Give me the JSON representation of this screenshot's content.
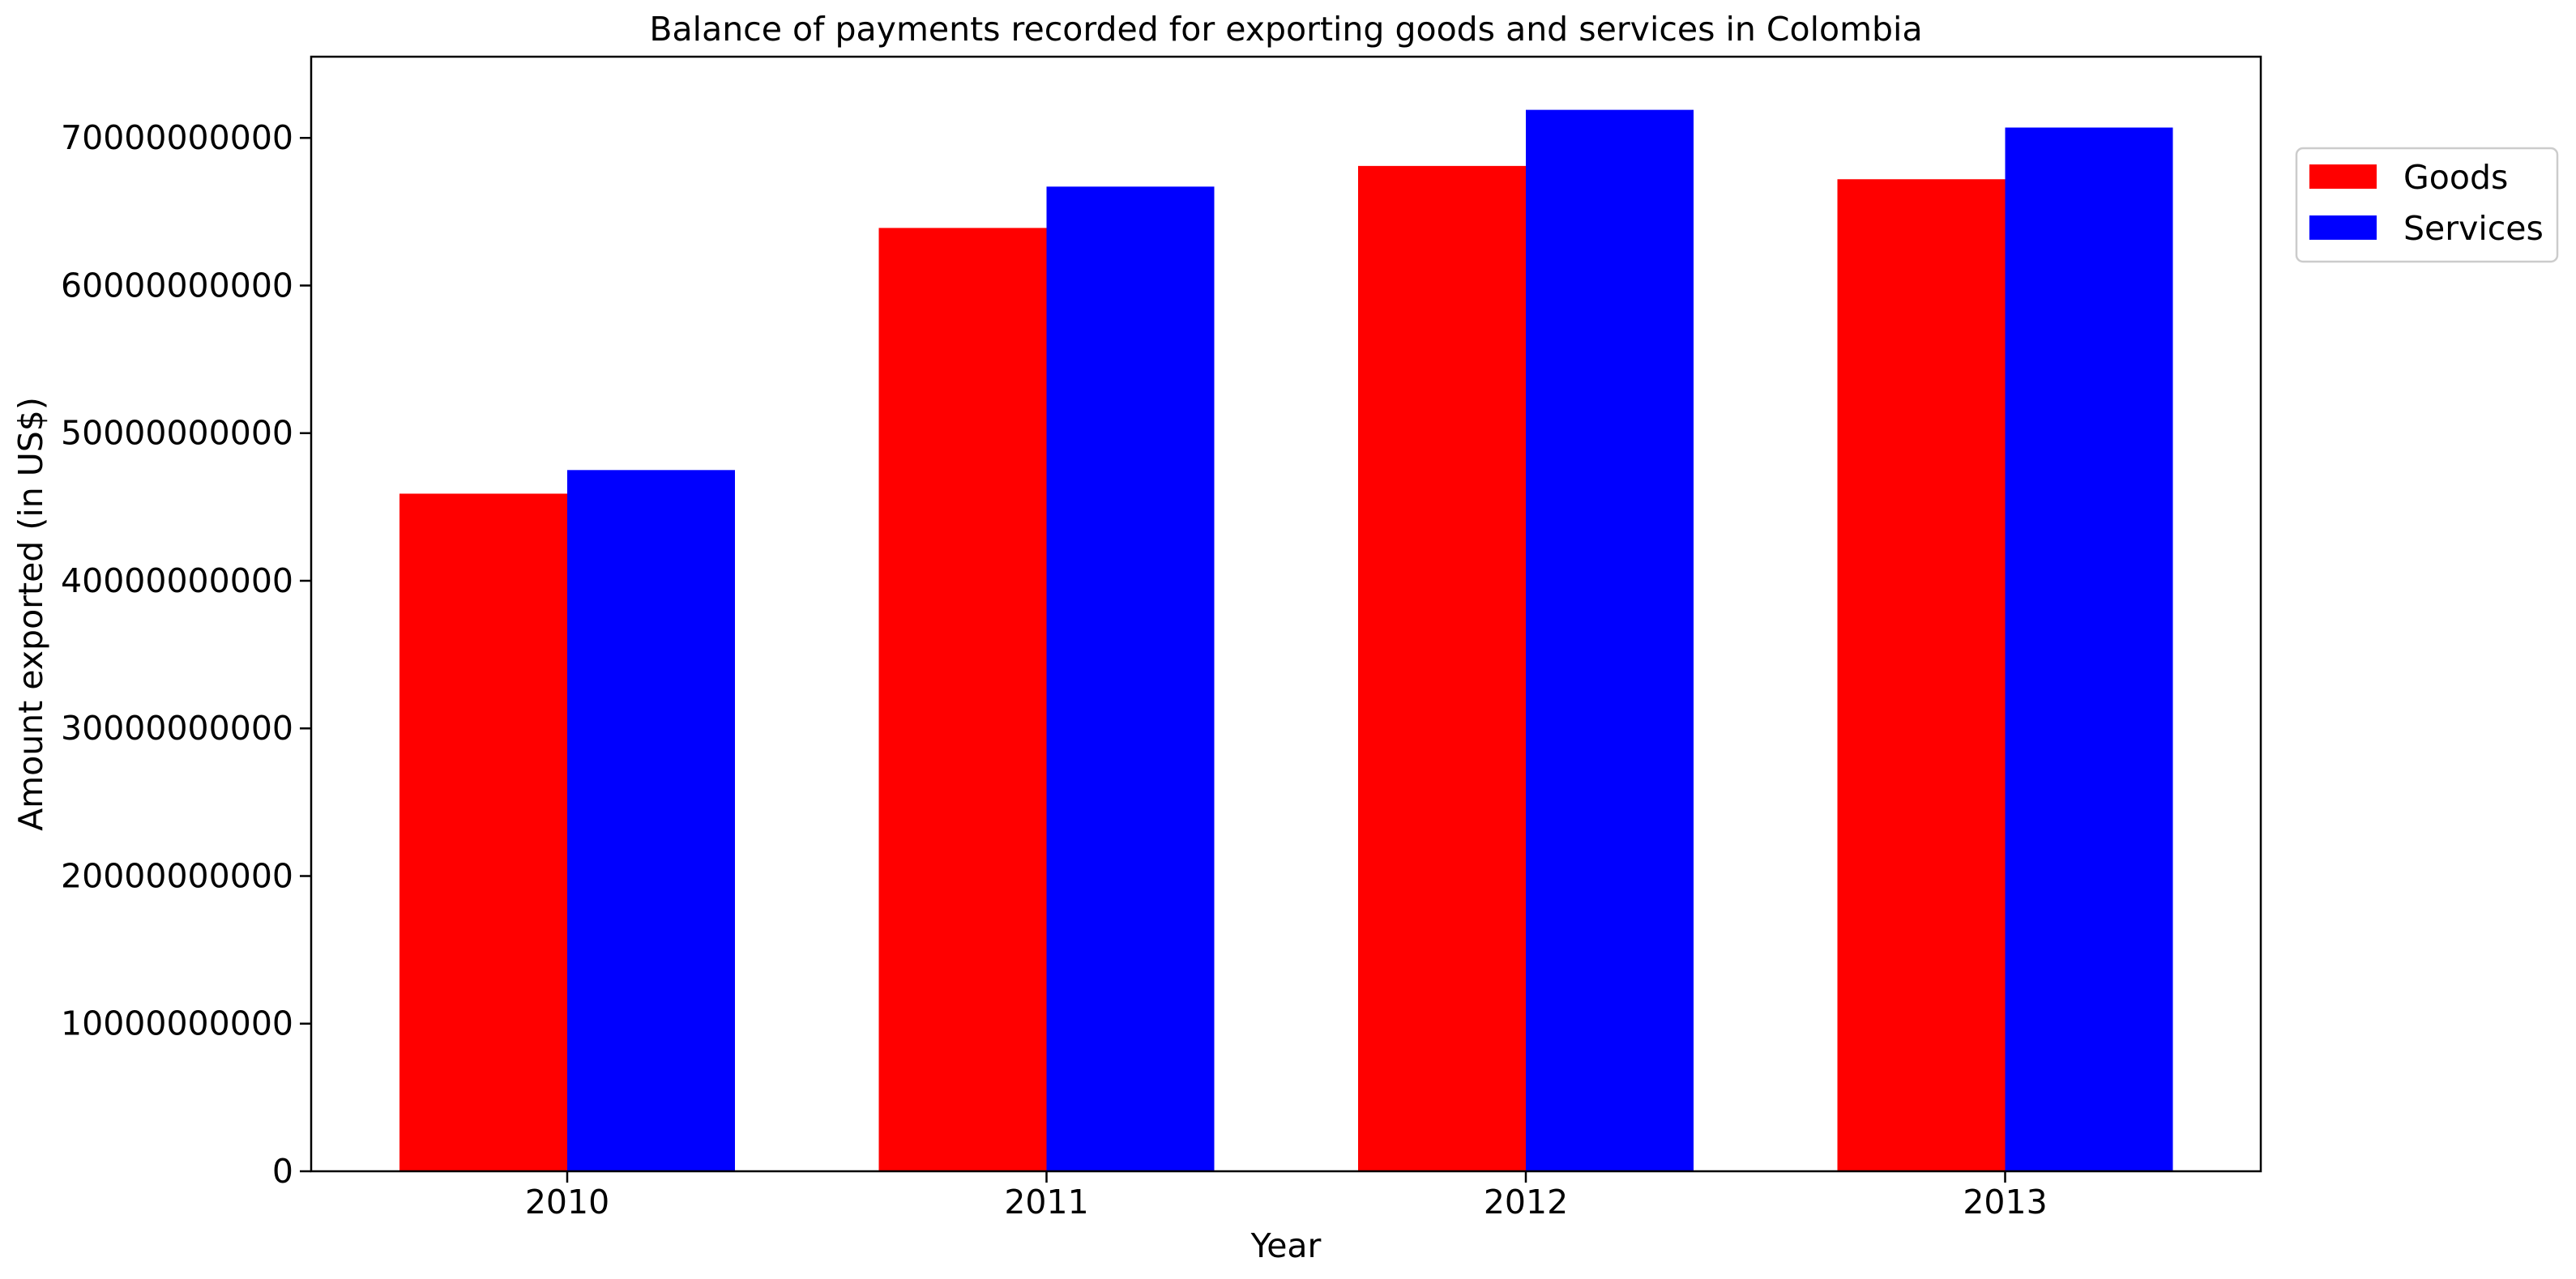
{
  "chart_data": {
    "type": "bar",
    "title": "Balance of payments recorded for exporting goods and services in Colombia",
    "xlabel": "Year",
    "ylabel": "Amount exported (in US$)",
    "categories": [
      "2010",
      "2011",
      "2012",
      "2013"
    ],
    "series": [
      {
        "name": "Goods",
        "color": "#ff0000",
        "values": [
          45900000000,
          63900000000,
          68100000000,
          67200000000
        ]
      },
      {
        "name": "Services",
        "color": "#0000ff",
        "values": [
          47500000000,
          66700000000,
          71900000000,
          70700000000
        ]
      }
    ],
    "ylim": [
      0,
      75500000000
    ],
    "yticks": [
      0,
      10000000000,
      20000000000,
      30000000000,
      40000000000,
      50000000000,
      60000000000,
      70000000000
    ],
    "ytick_labels": [
      "0",
      "10000000000",
      "20000000000",
      "30000000000",
      "40000000000",
      "50000000000",
      "60000000000",
      "70000000000"
    ],
    "grid": false,
    "legend_position": "outside-top-right"
  }
}
